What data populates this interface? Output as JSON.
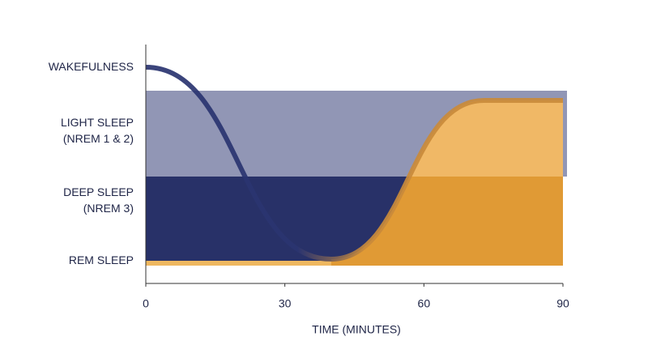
{
  "chart_data": {
    "type": "line",
    "x_label": "TIME (MINUTES)",
    "xlim": [
      0,
      90
    ],
    "xticks": [
      0,
      30,
      60,
      90
    ],
    "y_categories": [
      [
        "WAKEFULNESS"
      ],
      [
        "LIGHT SLEEP",
        "(NREM 1 & 2)"
      ],
      [
        "DEEP SLEEP",
        "(NREM 3)"
      ],
      [
        "REM SLEEP"
      ]
    ],
    "series": [
      {
        "x": [
          0,
          40,
          73,
          90
        ],
        "values": [
          "WAKEFULNESS",
          "REM SLEEP",
          "LIGHT SLEEP",
          "LIGHT SLEEP"
        ],
        "color": "#2a3470",
        "late_color": "#c98a3a"
      }
    ],
    "band_colors": [
      "#ffffff",
      "#9196b5",
      "#283168",
      "#efb860"
    ],
    "area_colors": [
      "#f0b866",
      "#e09a35"
    ]
  }
}
